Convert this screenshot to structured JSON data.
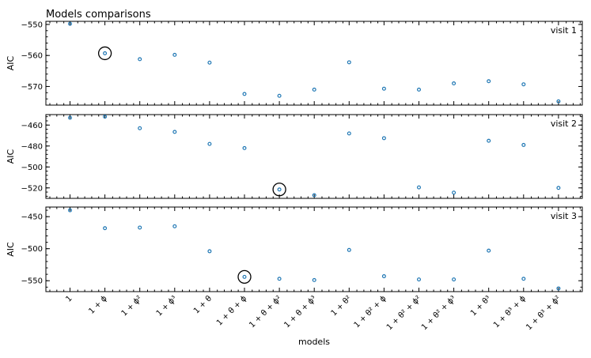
{
  "title": "Models comparisons",
  "chart_data": {
    "type": "scatter",
    "title": "Models comparisons",
    "xlabel": "models",
    "categories": [
      "1",
      "1 + ϕ",
      "1 + ϕ²",
      "1 + ϕ³",
      "1 + θ",
      "1 + θ + ϕ",
      "1 + θ + ϕ²",
      "1 + θ + ϕ³",
      "1 + θ²",
      "1 + θ² + ϕ",
      "1 + θ² + ϕ²",
      "1 + θ² + ϕ³",
      "1 + θ³",
      "1 + θ³ + ϕ",
      "1 + θ³ + ϕ²"
    ],
    "marker_color": "#1f77b4",
    "highlight_color": "#000000",
    "grid": false,
    "panels": [
      {
        "label": "visit 1",
        "ylabel": "AIC",
        "ylim": [
          -576,
          -549
        ],
        "yticks": [
          -550,
          -560,
          -570
        ],
        "ytick_labels": [
          "−550",
          "−560",
          "−570"
        ],
        "values": [
          -549.8,
          -559.3,
          -561.2,
          -559.8,
          -562.3,
          -572.4,
          -573.0,
          -571.0,
          -562.2,
          -570.7,
          -571.0,
          -569.0,
          -568.3,
          -569.3,
          -574.8
        ],
        "highlight_index": 1
      },
      {
        "label": "visit 2",
        "ylabel": "AIC",
        "ylim": [
          -530,
          -450
        ],
        "yticks": [
          -460,
          -480,
          -500,
          -520
        ],
        "ytick_labels": [
          "−460",
          "−480",
          "−500",
          "−520"
        ],
        "values": [
          -453.0,
          -452.0,
          -463.0,
          -466.5,
          -478.0,
          -482.0,
          -521.5,
          -527.0,
          -468.0,
          -472.5,
          -519.5,
          -524.5,
          -475.0,
          -479.0,
          -520.0
        ],
        "highlight_index": 6
      },
      {
        "label": "visit 3",
        "ylabel": "AIC",
        "ylim": [
          -567,
          -435
        ],
        "yticks": [
          -450,
          -500,
          -550
        ],
        "ytick_labels": [
          "−450",
          "−500",
          "−550"
        ],
        "values": [
          -440.0,
          -468.0,
          -467.0,
          -465.0,
          -504.0,
          -544.0,
          -547.0,
          -549.0,
          -502.0,
          -543.0,
          -548.0,
          -548.0,
          -503.0,
          -547.0,
          -562.0
        ],
        "highlight_index": 5
      }
    ]
  }
}
